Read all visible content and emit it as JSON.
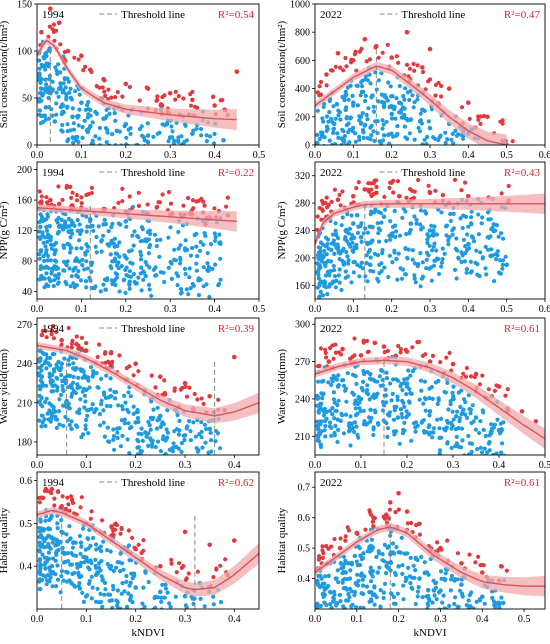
{
  "colors": {
    "blue_points": "#1e9be0",
    "red_points": "#e03a3e",
    "fit_line": "#d9545c",
    "ci_band": "#f2a9ae",
    "threshold_line": "#8a8a8a",
    "r2_text": "#d9262c"
  },
  "chart_data": [
    {
      "type": "scatter",
      "year": "1994",
      "legend": "Threshold line",
      "r2": "R²=0.54",
      "ylabel": "Soil conservation(t/hm²)",
      "xlabel": "",
      "xlim": [
        0,
        0.5
      ],
      "ylim": [
        0,
        150
      ],
      "xticks": [
        "0.0",
        "0.1",
        "0.2",
        "0.3",
        "0.4",
        "0.5"
      ],
      "yticks": [
        "0",
        "50",
        "100",
        "150"
      ],
      "thresholds": [
        0.03
      ],
      "fit_curve": {
        "x": [
          0,
          0.02,
          0.04,
          0.07,
          0.1,
          0.15,
          0.2,
          0.3,
          0.4,
          0.45
        ],
        "y": [
          95,
          112,
          105,
          80,
          60,
          45,
          38,
          32,
          28,
          27
        ]
      },
      "series": [
        {
          "name": "",
          "color": "#1e9be0",
          "note": "dense cloud near origin",
          "x": [
            0.01,
            0.02,
            0.03,
            0.04,
            0.05,
            0.06,
            0.08,
            0.1,
            0.12,
            0.15,
            0.18,
            0.2,
            0.25,
            0.3,
            0.35,
            0.42
          ],
          "y": [
            70,
            40,
            55,
            25,
            60,
            35,
            30,
            45,
            20,
            28,
            15,
            22,
            10,
            8,
            12,
            5
          ]
        },
        {
          "name": "",
          "color": "#e03a3e",
          "x": [
            0.01,
            0.03,
            0.05,
            0.07,
            0.1,
            0.12,
            0.15,
            0.2,
            0.25,
            0.3,
            0.35,
            0.4,
            0.45
          ],
          "y": [
            120,
            145,
            130,
            100,
            95,
            80,
            70,
            65,
            60,
            55,
            48,
            42,
            78
          ]
        }
      ]
    },
    {
      "type": "scatter",
      "year": "2022",
      "legend": "Threshold line",
      "r2": "R²=0.47",
      "ylabel": "Soil conservation(t/hm²)",
      "xlabel": "",
      "xlim": [
        0,
        0.6
      ],
      "ylim": [
        0,
        1000
      ],
      "xticks": [
        "0.0",
        "0.1",
        "0.2",
        "0.3",
        "0.4",
        "0.5",
        "0.6"
      ],
      "yticks": [
        "0",
        "200",
        "400",
        "600",
        "800",
        "1000"
      ],
      "thresholds": [
        0.16
      ],
      "fit_curve": {
        "x": [
          0,
          0.05,
          0.1,
          0.16,
          0.2,
          0.25,
          0.3,
          0.35,
          0.4,
          0.45,
          0.5
        ],
        "y": [
          280,
          380,
          480,
          560,
          530,
          430,
          320,
          200,
          100,
          30,
          0
        ]
      },
      "series": [
        {
          "name": "",
          "color": "#1e9be0",
          "note": "dense cloud",
          "x": [
            0.05,
            0.08,
            0.1,
            0.12,
            0.15,
            0.18,
            0.2,
            0.22,
            0.25,
            0.28,
            0.3,
            0.35,
            0.4
          ],
          "y": [
            150,
            250,
            300,
            200,
            350,
            280,
            220,
            300,
            180,
            250,
            120,
            150,
            80
          ]
        },
        {
          "name": "",
          "color": "#e03a3e",
          "x": [
            0.03,
            0.06,
            0.1,
            0.13,
            0.16,
            0.2,
            0.24,
            0.28,
            0.3,
            0.35,
            0.4,
            0.45
          ],
          "y": [
            500,
            650,
            600,
            750,
            700,
            620,
            800,
            550,
            680,
            400,
            300,
            200
          ]
        }
      ]
    },
    {
      "type": "scatter",
      "year": "1994",
      "legend": "Threshold line",
      "r2": "R²=0.22",
      "ylabel": "NPP(g C/m²)",
      "xlabel": "",
      "xlim": [
        0,
        0.5
      ],
      "ylim": [
        30,
        210
      ],
      "xticks": [
        "0.0",
        "0.1",
        "0.2",
        "0.3",
        "0.4",
        "0.5"
      ],
      "yticks": [
        "40",
        "80",
        "120",
        "160",
        "200"
      ],
      "thresholds": [
        0.12
      ],
      "fit_curve": {
        "x": [
          0,
          0.05,
          0.1,
          0.15,
          0.2,
          0.25,
          0.3,
          0.35,
          0.4,
          0.45
        ],
        "y": [
          150,
          148,
          146,
          144,
          142,
          140,
          138,
          136,
          134,
          132
        ]
      },
      "series": [
        {
          "name": "",
          "color": "#1e9be0",
          "note": "dense cloud",
          "x": [
            0.01,
            0.02,
            0.03,
            0.05,
            0.06,
            0.08,
            0.1,
            0.12,
            0.15,
            0.2,
            0.25
          ],
          "y": [
            60,
            90,
            110,
            125,
            100,
            130,
            120,
            135,
            128,
            132,
            118
          ]
        },
        {
          "name": "",
          "color": "#e03a3e",
          "x": [
            0.01,
            0.03,
            0.05,
            0.08,
            0.1,
            0.15,
            0.2,
            0.25,
            0.3,
            0.35,
            0.38,
            0.43
          ],
          "y": [
            158,
            160,
            155,
            152,
            150,
            148,
            145,
            142,
            140,
            141,
            128,
            140
          ]
        }
      ]
    },
    {
      "type": "scatter",
      "year": "2022",
      "legend": "Threshold line",
      "r2": "R²=0.43",
      "ylabel": "NPP(g C/m²)",
      "xlabel": "",
      "xlim": [
        0,
        0.6
      ],
      "ylim": [
        140,
        340
      ],
      "xticks": [
        "0.0",
        "0.1",
        "0.2",
        "0.3",
        "0.4",
        "0.5",
        "0.6"
      ],
      "yticks": [
        "160",
        "200",
        "240",
        "280",
        "320"
      ],
      "thresholds": [
        0.13
      ],
      "fit_curve": {
        "x": [
          0,
          0.02,
          0.05,
          0.1,
          0.13,
          0.2,
          0.3,
          0.4,
          0.5,
          0.6
        ],
        "y": [
          220,
          250,
          265,
          274,
          278,
          279,
          279,
          279,
          279,
          279
        ]
      },
      "series": [
        {
          "name": "",
          "color": "#1e9be0",
          "note": "dense cloud",
          "x": [
            0.02,
            0.05,
            0.08,
            0.1,
            0.12,
            0.15,
            0.18,
            0.2,
            0.25,
            0.3,
            0.35,
            0.4,
            0.5
          ],
          "y": [
            200,
            220,
            240,
            250,
            230,
            245,
            260,
            235,
            250,
            240,
            230,
            220,
            190
          ]
        },
        {
          "name": "",
          "color": "#e03a3e",
          "x": [
            0.03,
            0.06,
            0.1,
            0.13,
            0.16,
            0.2,
            0.22,
            0.25,
            0.3,
            0.35,
            0.4
          ],
          "y": [
            260,
            285,
            290,
            300,
            295,
            310,
            290,
            285,
            295,
            280,
            290
          ]
        }
      ]
    },
    {
      "type": "scatter",
      "year": "1994",
      "legend": "Threshold line",
      "r2": "R²=0.39",
      "ylabel": "Water yield(mm)",
      "xlabel": "",
      "xlim": [
        0,
        0.45
      ],
      "ylim": [
        170,
        275
      ],
      "xticks": [
        "0.0",
        "0.1",
        "0.2",
        "0.3",
        "0.4"
      ],
      "yticks": [
        "180",
        "210",
        "240",
        "270"
      ],
      "thresholds": [
        0.06,
        0.36
      ],
      "fit_curve": {
        "x": [
          0,
          0.03,
          0.06,
          0.1,
          0.15,
          0.2,
          0.25,
          0.3,
          0.36,
          0.4,
          0.45
        ],
        "y": [
          254,
          252,
          250,
          244,
          234,
          223,
          212,
          204,
          200,
          203,
          210
        ]
      },
      "series": [
        {
          "name": "",
          "color": "#1e9be0",
          "note": "dense cloud",
          "x": [
            0.01,
            0.03,
            0.05,
            0.07,
            0.1,
            0.12,
            0.15,
            0.2,
            0.25,
            0.3,
            0.35
          ],
          "y": [
            230,
            200,
            240,
            190,
            220,
            205,
            215,
            195,
            200,
            185,
            190
          ]
        },
        {
          "name": "",
          "color": "#e03a3e",
          "x": [
            0.01,
            0.03,
            0.05,
            0.08,
            0.1,
            0.15,
            0.2,
            0.25,
            0.3,
            0.35,
            0.4
          ],
          "y": [
            262,
            265,
            258,
            255,
            250,
            248,
            240,
            230,
            225,
            215,
            245
          ]
        }
      ]
    },
    {
      "type": "scatter",
      "year": "2022",
      "legend": "",
      "r2": "R²=0.61",
      "ylabel": "Water yield(mm)",
      "xlabel": "",
      "xlim": [
        0,
        0.5
      ],
      "ylim": [
        195,
        305
      ],
      "xticks": [
        "0.0",
        "0.1",
        "0.2",
        "0.3",
        "0.4",
        "0.5"
      ],
      "yticks": [
        "210",
        "240",
        "270",
        "300"
      ],
      "thresholds": [
        0.15
      ],
      "fit_curve": {
        "x": [
          0,
          0.05,
          0.1,
          0.15,
          0.2,
          0.25,
          0.3,
          0.35,
          0.4,
          0.45,
          0.5
        ],
        "y": [
          260,
          266,
          270,
          271,
          270,
          265,
          257,
          246,
          233,
          220,
          208
        ]
      },
      "series": [
        {
          "name": "",
          "color": "#1e9be0",
          "note": "dense cloud",
          "x": [
            0.02,
            0.05,
            0.08,
            0.1,
            0.12,
            0.15,
            0.18,
            0.2,
            0.25,
            0.3,
            0.35,
            0.4
          ],
          "y": [
            230,
            250,
            220,
            240,
            260,
            235,
            225,
            250,
            230,
            240,
            225,
            215
          ]
        },
        {
          "name": "",
          "color": "#e03a3e",
          "x": [
            0.03,
            0.06,
            0.1,
            0.13,
            0.15,
            0.2,
            0.25,
            0.3,
            0.35,
            0.4,
            0.45,
            0.48
          ],
          "y": [
            270,
            280,
            275,
            285,
            282,
            278,
            270,
            268,
            260,
            250,
            230,
            222
          ]
        }
      ]
    },
    {
      "type": "scatter",
      "year": "1994",
      "legend": "Threshold line",
      "r2": "R²=0.62",
      "ylabel": "Habitat quality",
      "xlabel": "kNDVI",
      "xlim": [
        0,
        0.45
      ],
      "ylim": [
        0.3,
        0.62
      ],
      "xticks": [
        "0.0",
        "0.1",
        "0.2",
        "0.3",
        "0.4"
      ],
      "yticks": [
        "0.4",
        "0.5",
        "0.6"
      ],
      "thresholds": [
        0.05,
        0.32
      ],
      "fit_curve": {
        "x": [
          0,
          0.03,
          0.05,
          0.1,
          0.15,
          0.2,
          0.25,
          0.3,
          0.32,
          0.36,
          0.4,
          0.45
        ],
        "y": [
          0.52,
          0.53,
          0.525,
          0.5,
          0.46,
          0.42,
          0.38,
          0.35,
          0.345,
          0.35,
          0.38,
          0.43
        ]
      },
      "series": [
        {
          "name": "",
          "color": "#1e9be0",
          "note": "dense cloud",
          "x": [
            0.01,
            0.03,
            0.05,
            0.07,
            0.1,
            0.12,
            0.15,
            0.2,
            0.25,
            0.3,
            0.33
          ],
          "y": [
            0.45,
            0.4,
            0.48,
            0.36,
            0.42,
            0.38,
            0.4,
            0.35,
            0.34,
            0.33,
            0.36
          ]
        },
        {
          "name": "",
          "color": "#e03a3e",
          "x": [
            0.01,
            0.03,
            0.05,
            0.08,
            0.1,
            0.15,
            0.2,
            0.25,
            0.3,
            0.35,
            0.4
          ],
          "y": [
            0.56,
            0.58,
            0.54,
            0.52,
            0.5,
            0.47,
            0.44,
            0.4,
            0.48,
            0.45,
            0.46
          ]
        }
      ]
    },
    {
      "type": "scatter",
      "year": "2022",
      "legend": "",
      "r2": "R²=0.61",
      "ylabel": "Habitat quality",
      "xlabel": "kNDVI",
      "xlim": [
        0,
        0.55
      ],
      "ylim": [
        0.3,
        0.75
      ],
      "xticks": [
        "0.0",
        "0.1",
        "0.2",
        "0.3",
        "0.4",
        "0.5"
      ],
      "yticks": [
        "0.4",
        "0.5",
        "0.6",
        "0.7"
      ],
      "thresholds": [
        0.18
      ],
      "fit_curve": {
        "x": [
          0,
          0.05,
          0.1,
          0.15,
          0.18,
          0.22,
          0.28,
          0.35,
          0.4,
          0.45,
          0.5,
          0.55
        ],
        "y": [
          0.42,
          0.47,
          0.52,
          0.56,
          0.57,
          0.55,
          0.48,
          0.42,
          0.39,
          0.38,
          0.375,
          0.375
        ]
      },
      "series": [
        {
          "name": "",
          "color": "#1e9be0",
          "note": "dense cloud",
          "x": [
            0.02,
            0.05,
            0.08,
            0.1,
            0.13,
            0.15,
            0.18,
            0.2,
            0.25,
            0.3,
            0.35,
            0.4,
            0.45
          ],
          "y": [
            0.35,
            0.4,
            0.45,
            0.38,
            0.5,
            0.42,
            0.48,
            0.44,
            0.4,
            0.36,
            0.38,
            0.34,
            0.32
          ]
        },
        {
          "name": "",
          "color": "#e03a3e",
          "x": [
            0.03,
            0.06,
            0.1,
            0.14,
            0.18,
            0.2,
            0.22,
            0.25,
            0.3,
            0.35,
            0.4
          ],
          "y": [
            0.45,
            0.5,
            0.55,
            0.6,
            0.65,
            0.68,
            0.62,
            0.58,
            0.5,
            0.45,
            0.42
          ]
        }
      ]
    }
  ]
}
